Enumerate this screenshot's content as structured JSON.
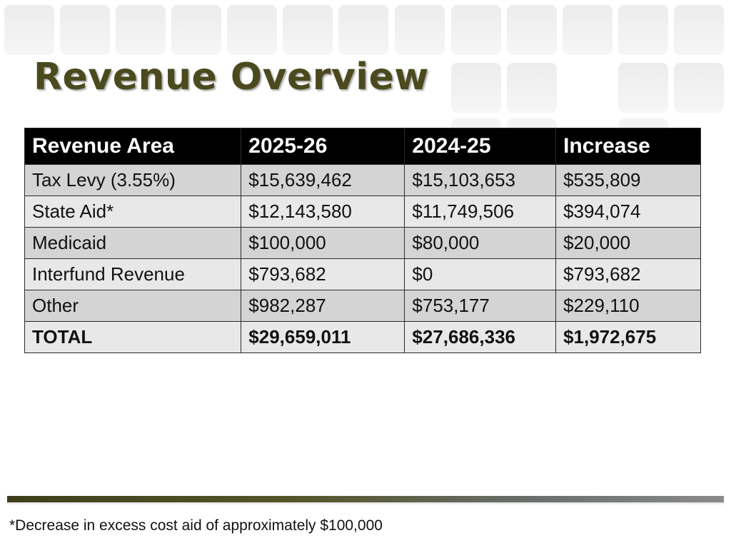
{
  "slide": {
    "title": "Revenue Overview",
    "table": {
      "headers": [
        "Revenue Area",
        "2025-26",
        "2024-25",
        "Increase"
      ],
      "rows": [
        [
          "Tax Levy (3.55%)",
          "$15,639,462",
          "$15,103,653",
          "$535,809"
        ],
        [
          "State Aid*",
          "$12,143,580",
          "$11,749,506",
          "$394,074"
        ],
        [
          "Medicaid",
          "$100,000",
          "$80,000",
          "$20,000"
        ],
        [
          "Interfund Revenue",
          "$793,682",
          "$0",
          "$793,682"
        ],
        [
          "Other",
          "$982,287",
          "$753,177",
          "$229,110"
        ],
        [
          "TOTAL",
          "$29,659,011",
          "$27,686,336",
          "$1,972,675"
        ]
      ]
    },
    "footnote": "*Decrease in excess cost aid of approximately $100,000"
  },
  "colors": {
    "title": "#4a4a1e",
    "header_bg": "#000000",
    "row_dark": "#d4d4d4",
    "row_light": "#e8e8e8",
    "divider": "#4a4a1e"
  }
}
